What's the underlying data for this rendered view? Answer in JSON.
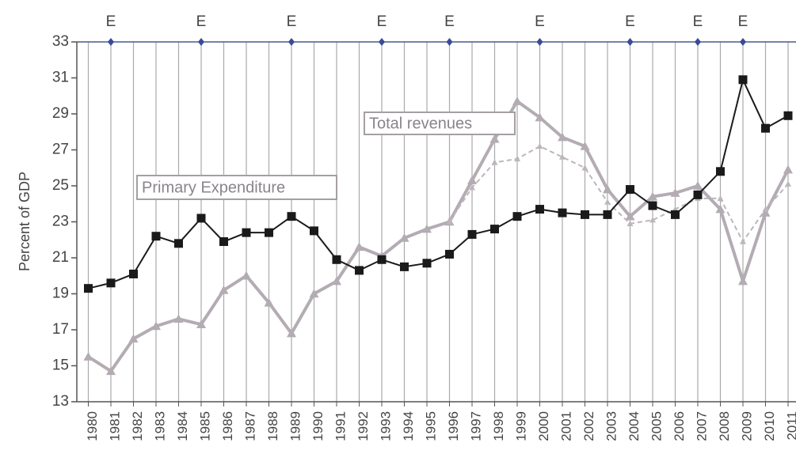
{
  "chart_data": {
    "type": "line",
    "y_label": "Percent of GDP",
    "categories": [
      "1980",
      "1981",
      "1982",
      "1983",
      "1984",
      "1985",
      "1986",
      "1987",
      "1988",
      "1989",
      "1990",
      "1991",
      "1992",
      "1993",
      "1994",
      "1995",
      "1996",
      "1997",
      "1998",
      "1999",
      "2000",
      "2001",
      "2002",
      "2003",
      "2004",
      "2005",
      "2006",
      "2007",
      "2008",
      "2009",
      "2010",
      "2011"
    ],
    "series": [
      {
        "color": "#b3acb3",
        "marker": "triangle",
        "width": 4,
        "dashed": false,
        "values": [
          15.5,
          14.7,
          16.5,
          17.2,
          17.6,
          17.3,
          19.2,
          20.0,
          18.5,
          16.8,
          19.0,
          19.7,
          21.6,
          21.1,
          22.1,
          22.6,
          23.0,
          25.3,
          27.6,
          29.7,
          28.8,
          27.7,
          27.2,
          24.8,
          23.3,
          24.4,
          24.6,
          25.0,
          23.7,
          19.7,
          23.5,
          25.9
        ]
      },
      {
        "color": "#bdb6bd",
        "marker": "triangle",
        "width": 2,
        "dashed": true,
        "values": [
          null,
          null,
          null,
          null,
          null,
          null,
          null,
          null,
          null,
          null,
          null,
          null,
          null,
          null,
          null,
          null,
          23.0,
          24.9,
          26.3,
          26.5,
          27.2,
          26.6,
          26.0,
          24.1,
          22.9,
          23.1,
          23.7,
          24.3,
          24.3,
          21.9,
          23.7,
          25.1
        ]
      },
      {
        "color": "#1a1a1a",
        "marker": "square",
        "width": 2,
        "dashed": false,
        "values": [
          19.3,
          19.6,
          20.1,
          22.2,
          21.8,
          23.2,
          21.9,
          22.4,
          22.4,
          23.3,
          22.5,
          20.9,
          20.3,
          20.9,
          20.5,
          20.7,
          21.2,
          22.3,
          22.6,
          23.3,
          23.7,
          23.5,
          23.4,
          23.4,
          24.8,
          23.9,
          23.4,
          24.5,
          25.8,
          30.9,
          28.2,
          28.9
        ]
      }
    ],
    "annotations": [
      "Total revenues",
      "Primary Expenditure"
    ],
    "markers": {
      "color": "#3a4a9a",
      "x": [
        "1981",
        "1985",
        "1989",
        "1993",
        "1996",
        "2000",
        "2004",
        "2007",
        "2009"
      ],
      "labels": [
        "E",
        "E",
        "E",
        "E",
        "E",
        "E",
        "E",
        "E",
        "E"
      ]
    },
    "ylim": [
      13,
      33
    ],
    "yticks": [
      13,
      15,
      17,
      19,
      21,
      23,
      25,
      27,
      29,
      31,
      33
    ],
    "grid": "vertical"
  }
}
